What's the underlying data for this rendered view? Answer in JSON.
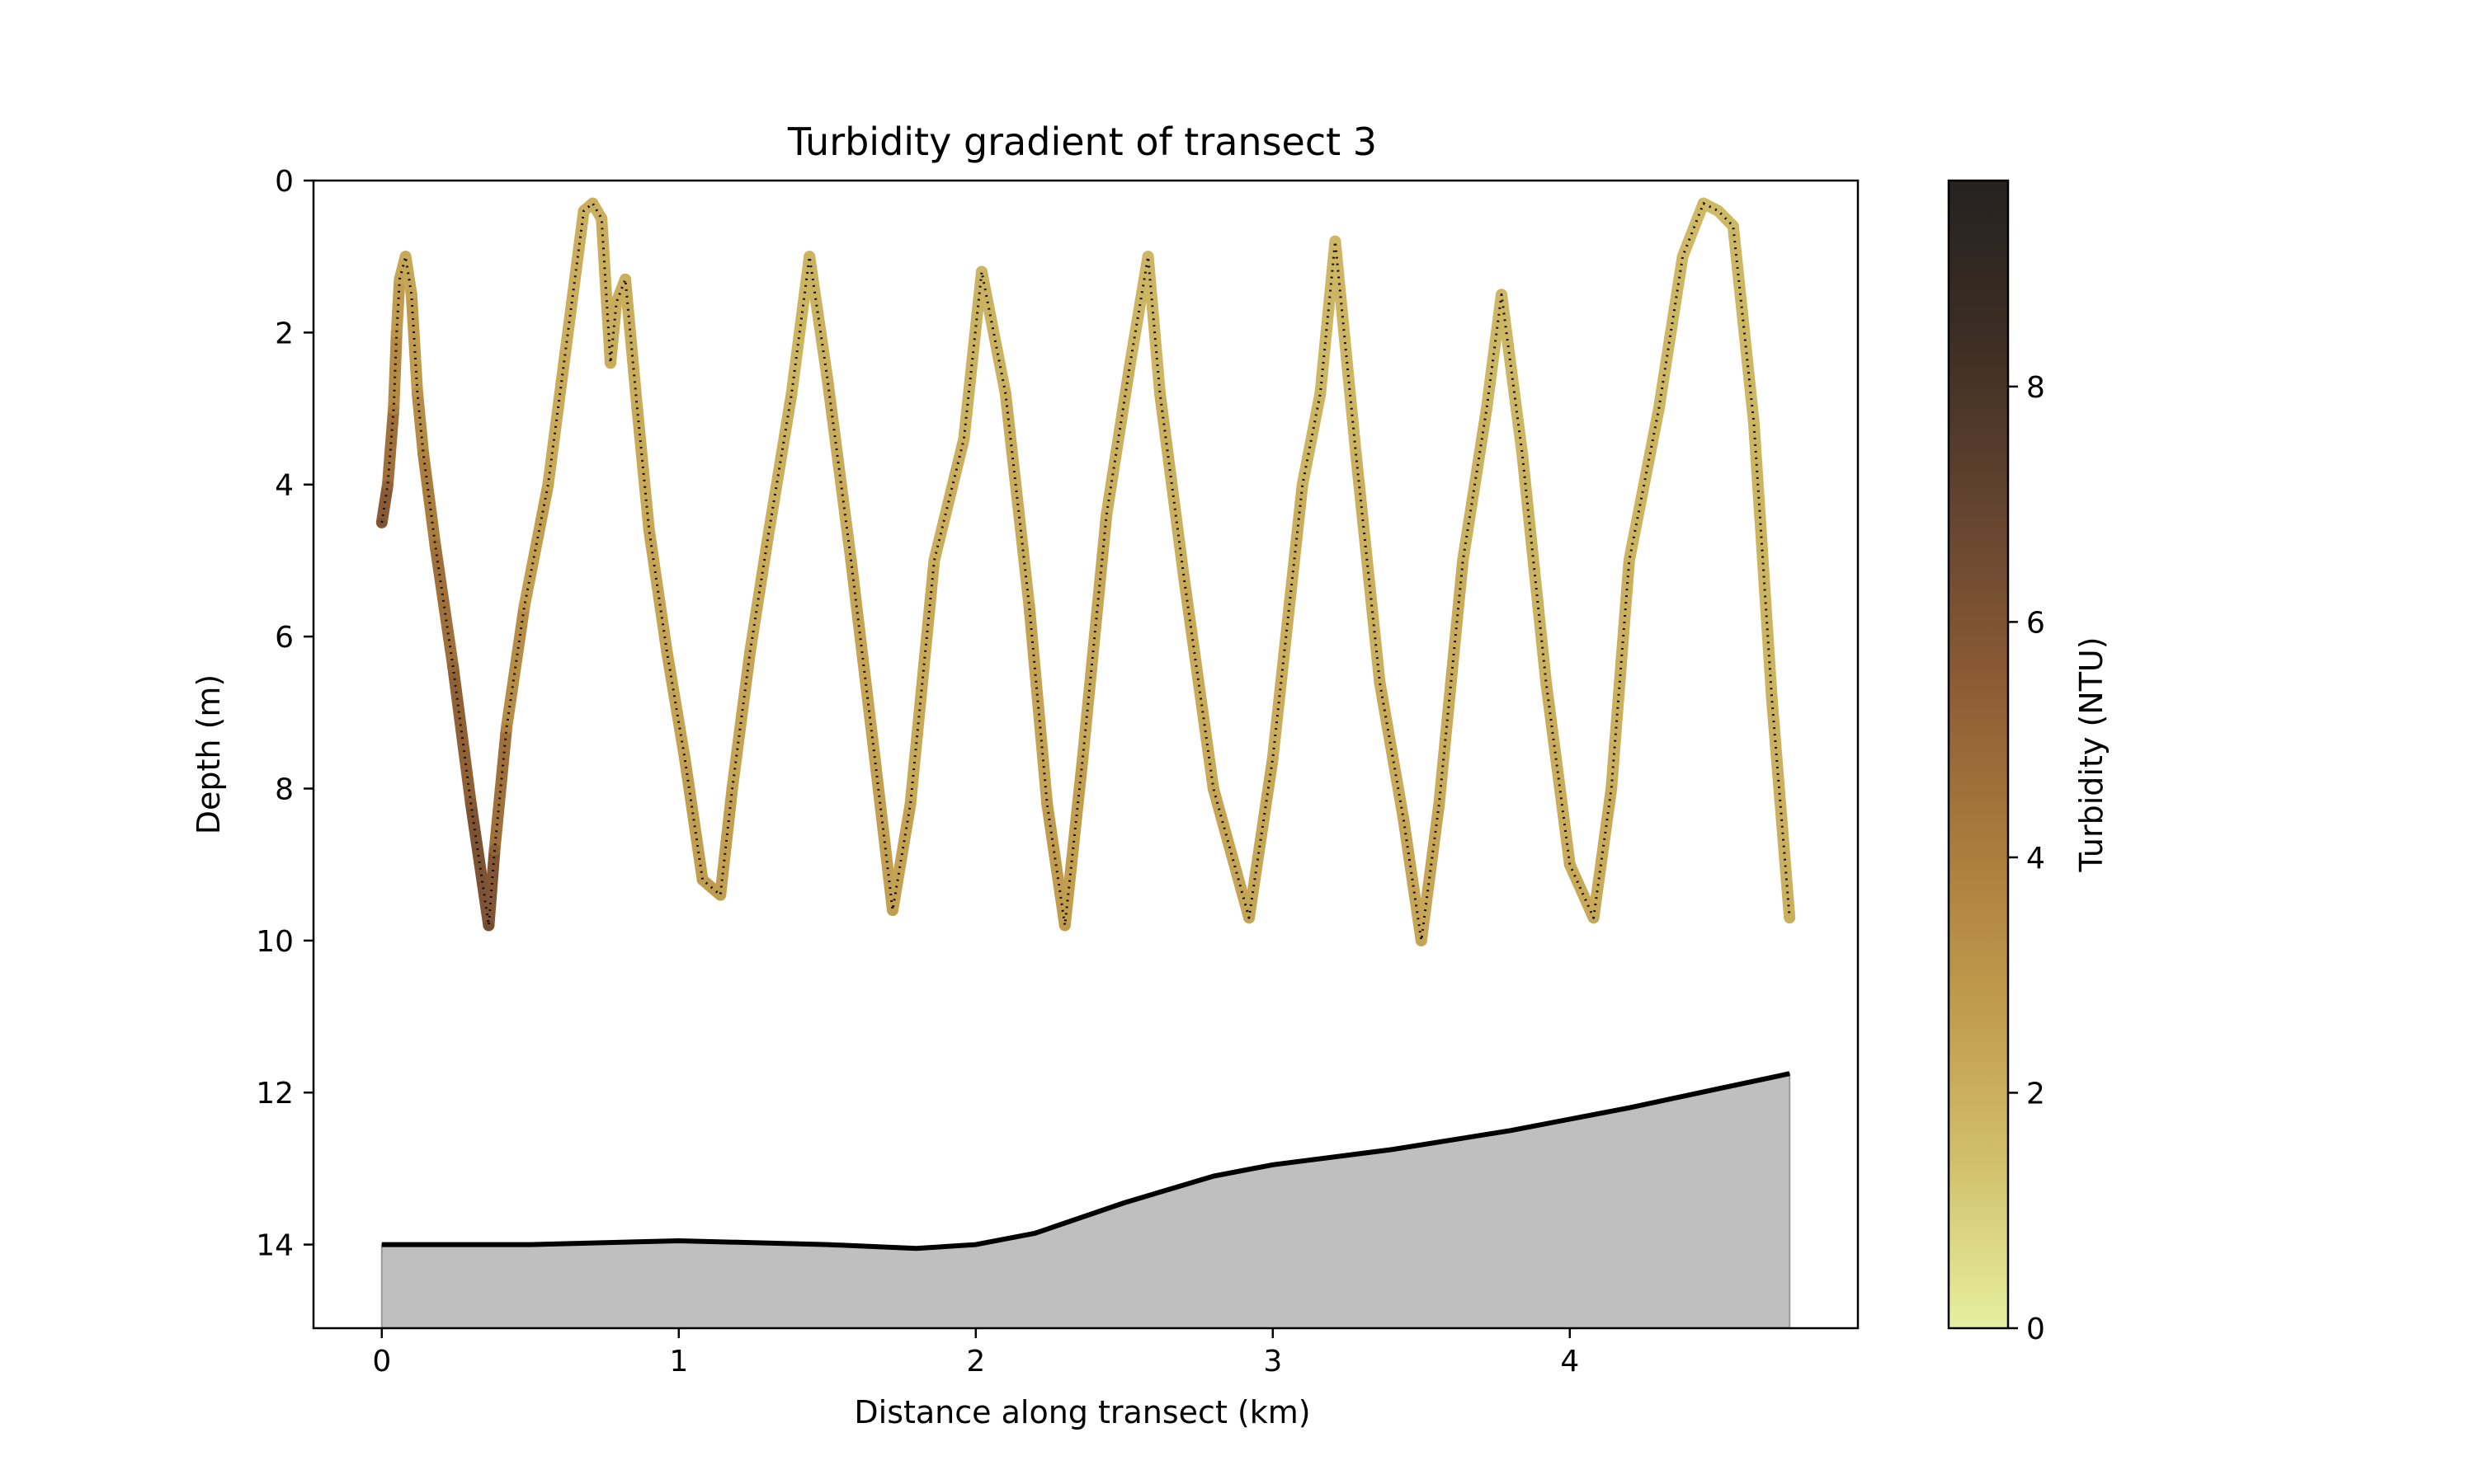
{
  "chart_data": {
    "type": "line",
    "title": "Turbidity gradient of transect 3",
    "xlabel": "Distance along transect (km)",
    "ylabel": "Depth (m)",
    "xlim": [
      -0.23,
      4.97
    ],
    "ylim": [
      15.1,
      0
    ],
    "y_inverted": true,
    "xticks": [
      "0",
      "1",
      "2",
      "3",
      "4"
    ],
    "yticks": [
      "0",
      "2",
      "4",
      "6",
      "8",
      "10",
      "12",
      "14"
    ],
    "grid": false,
    "series": [
      {
        "kind": "glider-track",
        "x": [
          0.0,
          0.02,
          0.04,
          0.05,
          0.06,
          0.08,
          0.1,
          0.12,
          0.14,
          0.18,
          0.24,
          0.3,
          0.36,
          0.38,
          0.42,
          0.48,
          0.56,
          0.62,
          0.68,
          0.71,
          0.74,
          0.77,
          0.79,
          0.82,
          0.86,
          0.9,
          0.96,
          1.02,
          1.08,
          1.14,
          1.18,
          1.24,
          1.3,
          1.38,
          1.44,
          1.5,
          1.58,
          1.66,
          1.72,
          1.78,
          1.86,
          1.96,
          2.02,
          2.1,
          2.18,
          2.24,
          2.3,
          2.36,
          2.44,
          2.52,
          2.58,
          2.62,
          2.7,
          2.8,
          2.92,
          3.0,
          3.1,
          3.16,
          3.21,
          3.28,
          3.36,
          3.44,
          3.5,
          3.56,
          3.64,
          3.72,
          3.77,
          3.84,
          3.92,
          4.0,
          4.08,
          4.14,
          4.2,
          4.3,
          4.38,
          4.45,
          4.5,
          4.55,
          4.62,
          4.68,
          4.74
        ],
        "y": [
          4.5,
          4.0,
          3.0,
          2.0,
          1.3,
          1.0,
          1.5,
          2.8,
          3.6,
          4.8,
          6.4,
          8.2,
          9.8,
          8.8,
          7.2,
          5.6,
          4.0,
          2.2,
          0.4,
          0.3,
          0.5,
          2.4,
          1.6,
          1.3,
          3.0,
          4.6,
          6.2,
          7.6,
          9.2,
          9.4,
          8.0,
          6.2,
          4.7,
          2.8,
          1.0,
          2.6,
          5.0,
          7.6,
          9.6,
          8.2,
          5.0,
          3.4,
          1.2,
          2.8,
          5.6,
          8.2,
          9.8,
          7.6,
          4.4,
          2.4,
          1.0,
          2.8,
          5.2,
          8.0,
          9.7,
          7.6,
          4.0,
          2.8,
          0.8,
          3.6,
          6.6,
          8.4,
          10.0,
          8.2,
          5.0,
          3.0,
          1.5,
          3.6,
          6.6,
          9.0,
          9.7,
          8.0,
          5.0,
          3.0,
          1.0,
          0.3,
          0.4,
          0.6,
          3.2,
          6.8,
          9.7
        ],
        "turbidity": [
          6.0,
          5.2,
          4.0,
          3.0,
          2.4,
          2.2,
          2.4,
          3.0,
          3.8,
          4.3,
          4.9,
          5.6,
          6.4,
          5.4,
          3.8,
          2.9,
          2.3,
          2.1,
          2.0,
          2.0,
          2.0,
          2.1,
          2.1,
          2.0,
          2.2,
          2.3,
          2.4,
          2.5,
          2.7,
          2.7,
          2.5,
          2.3,
          2.1,
          1.9,
          1.8,
          2.0,
          2.3,
          2.5,
          2.6,
          2.4,
          2.1,
          2.0,
          1.8,
          2.0,
          2.3,
          2.6,
          2.8,
          2.5,
          2.1,
          1.9,
          1.7,
          1.9,
          2.1,
          2.3,
          2.4,
          2.2,
          1.9,
          1.8,
          1.7,
          1.9,
          2.1,
          2.3,
          2.4,
          2.3,
          2.0,
          1.8,
          1.7,
          1.8,
          2.0,
          2.2,
          2.3,
          2.1,
          1.9,
          1.8,
          1.7,
          1.6,
          1.6,
          1.7,
          1.8,
          1.9,
          2.0
        ]
      },
      {
        "kind": "seafloor",
        "x": [
          0.0,
          0.5,
          1.0,
          1.5,
          1.8,
          2.0,
          2.2,
          2.5,
          2.8,
          3.0,
          3.4,
          3.8,
          4.2,
          4.5,
          4.74
        ],
        "y": [
          14.0,
          14.0,
          13.95,
          14.0,
          14.05,
          14.0,
          13.85,
          13.45,
          13.1,
          12.95,
          12.75,
          12.5,
          12.2,
          11.95,
          11.75
        ]
      }
    ],
    "colorbar": {
      "label": "Turbidity (NTU)",
      "ticks": [
        "0",
        "2",
        "4",
        "6",
        "8"
      ],
      "range": [
        0,
        9.75
      ],
      "colormap": [
        "#e6f0a0",
        "#d2c06c",
        "#c09a4c",
        "#a87a3c",
        "#8a5a34",
        "#644430",
        "#3e2e24",
        "#252220"
      ]
    }
  }
}
